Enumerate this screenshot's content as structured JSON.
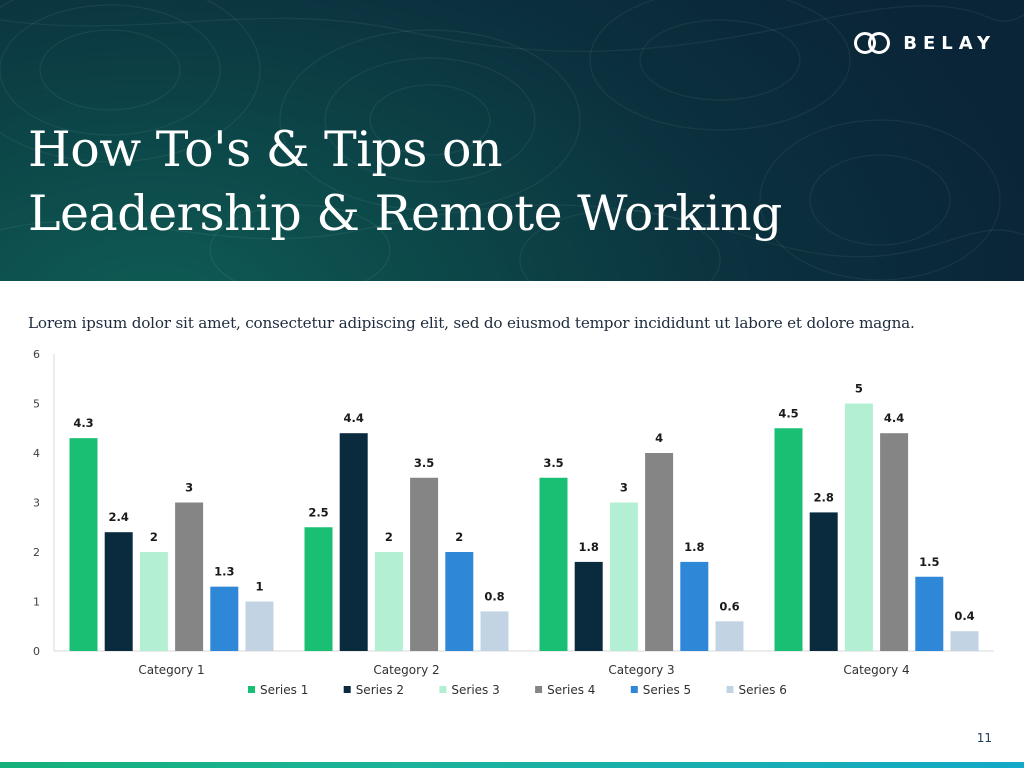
{
  "brand": {
    "name": "BELAY",
    "logo_icon": "infinity-icon"
  },
  "header": {
    "title_lines": [
      "How To's & Tips on",
      "Leadership & Remote Working"
    ]
  },
  "subtitle": "Lorem ipsum dolor sit amet, consectetur adipiscing elit, sed do eiusmod tempor incididunt ut labore et dolore magna.",
  "page_number": "11",
  "colors": {
    "series": [
      "#19bf73",
      "#0a2a3d",
      "#b3f0d3",
      "#858585",
      "#2f87d8",
      "#c2d4e4"
    ],
    "header_bg": "#0b3a45",
    "bottom_bar": "#16b07a"
  },
  "chart_data": {
    "type": "bar",
    "categories": [
      "Category 1",
      "Category 2",
      "Category 3",
      "Category 4"
    ],
    "series": [
      {
        "name": "Series 1",
        "values": [
          4.3,
          2.5,
          3.5,
          4.5
        ]
      },
      {
        "name": "Series 2",
        "values": [
          2.4,
          4.4,
          1.8,
          2.8
        ]
      },
      {
        "name": "Series 3",
        "values": [
          2,
          2,
          3,
          5
        ]
      },
      {
        "name": "Series 4",
        "values": [
          3,
          3.5,
          4,
          4.4
        ]
      },
      {
        "name": "Series 5",
        "values": [
          1.3,
          2,
          1.8,
          1.5
        ]
      },
      {
        "name": "Series 6",
        "values": [
          1,
          0.8,
          0.6,
          0.4
        ]
      }
    ],
    "ylim": [
      0,
      6
    ],
    "yticks": [
      "0",
      "1",
      "2",
      "3",
      "4",
      "5",
      "6"
    ],
    "data_labels": true,
    "grid": false,
    "legend": "bottom"
  }
}
